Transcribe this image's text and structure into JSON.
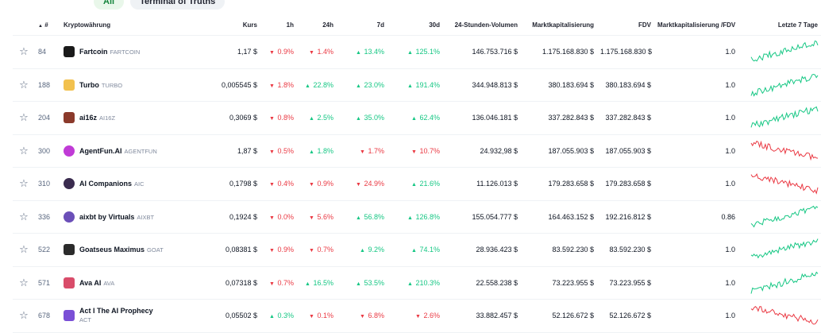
{
  "filters": [
    {
      "label": "All",
      "active": true
    },
    {
      "label": "Terminal of Truths",
      "active": false
    }
  ],
  "columns": {
    "rank": "#",
    "name": "Kryptowährung",
    "price": "Kurs",
    "h1": "1h",
    "h24": "24h",
    "d7": "7d",
    "d30": "30d",
    "volume": "24-Stunden-Volumen",
    "mcap": "Marktkapitalisierung",
    "fdv": "FDV",
    "ratio": "Marktkapitalisierung /FDV",
    "chart": "Letzte 7 Tage"
  },
  "colors": {
    "up": "#16c784",
    "down": "#ea3943"
  },
  "rows": [
    {
      "rank": "84",
      "name": "Fartcoin",
      "symbol": "FARTCOIN",
      "price": "1,17 $",
      "h1": "0.9%",
      "h1_dir": "down",
      "h24": "1.4%",
      "h24_dir": "down",
      "d7": "13.4%",
      "d7_dir": "up",
      "d30": "125.1%",
      "d30_dir": "up",
      "volume": "146.753.716 $",
      "mcap": "1.175.168.830 $",
      "fdv": "1.175.168.830 $",
      "ratio": "1.0",
      "trend": "up",
      "logo_color": "#1a1a1a",
      "logo_shape": "square"
    },
    {
      "rank": "188",
      "name": "Turbo",
      "symbol": "TURBO",
      "price": "0,005545 $",
      "h1": "1.8%",
      "h1_dir": "down",
      "h24": "22.8%",
      "h24_dir": "up",
      "d7": "23.0%",
      "d7_dir": "up",
      "d30": "191.4%",
      "d30_dir": "up",
      "volume": "344.948.813 $",
      "mcap": "380.183.694 $",
      "fdv": "380.183.694 $",
      "ratio": "1.0",
      "trend": "up",
      "logo_color": "#f2c14e",
      "logo_shape": "square"
    },
    {
      "rank": "204",
      "name": "ai16z",
      "symbol": "AI16Z",
      "price": "0,3069 $",
      "h1": "0.8%",
      "h1_dir": "down",
      "h24": "2.5%",
      "h24_dir": "up",
      "d7": "35.0%",
      "d7_dir": "up",
      "d30": "62.4%",
      "d30_dir": "up",
      "volume": "136.046.181 $",
      "mcap": "337.282.843 $",
      "fdv": "337.282.843 $",
      "ratio": "1.0",
      "trend": "up",
      "logo_color": "#8b3a2b",
      "logo_shape": "square"
    },
    {
      "rank": "300",
      "name": "AgentFun.AI",
      "symbol": "AGENTFUN",
      "price": "1,87 $",
      "h1": "0.5%",
      "h1_dir": "down",
      "h24": "1.8%",
      "h24_dir": "up",
      "d7": "1.7%",
      "d7_dir": "down",
      "d30": "10.7%",
      "d30_dir": "down",
      "volume": "24.932,98 $",
      "mcap": "187.055.903 $",
      "fdv": "187.055.903 $",
      "ratio": "1.0",
      "trend": "down",
      "logo_color": "#c03bd6",
      "logo_shape": "circle"
    },
    {
      "rank": "310",
      "name": "AI Companions",
      "symbol": "AIC",
      "price": "0,1798 $",
      "h1": "0.4%",
      "h1_dir": "down",
      "h24": "0.9%",
      "h24_dir": "down",
      "d7": "24.9%",
      "d7_dir": "down",
      "d30": "21.6%",
      "d30_dir": "up",
      "volume": "11.126.013 $",
      "mcap": "179.283.658 $",
      "fdv": "179.283.658 $",
      "ratio": "1.0",
      "trend": "down",
      "logo_color": "#3a2b4f",
      "logo_shape": "circle"
    },
    {
      "rank": "336",
      "name": "aixbt by Virtuals",
      "symbol": "AIXBT",
      "price": "0,1924 $",
      "h1": "0.0%",
      "h1_dir": "down",
      "h24": "5.6%",
      "h24_dir": "down",
      "d7": "56.8%",
      "d7_dir": "up",
      "d30": "126.8%",
      "d30_dir": "up",
      "volume": "155.054.777 $",
      "mcap": "164.463.152 $",
      "fdv": "192.216.812 $",
      "ratio": "0.86",
      "trend": "up",
      "logo_color": "#6b4fb8",
      "logo_shape": "circle"
    },
    {
      "rank": "522",
      "name": "Goatseus Maximus",
      "symbol": "GOAT",
      "price": "0,08381 $",
      "h1": "0.9%",
      "h1_dir": "down",
      "h24": "0.7%",
      "h24_dir": "down",
      "d7": "9.2%",
      "d7_dir": "up",
      "d30": "74.1%",
      "d30_dir": "up",
      "volume": "28.936.423 $",
      "mcap": "83.592.230 $",
      "fdv": "83.592.230 $",
      "ratio": "1.0",
      "trend": "up",
      "logo_color": "#2b2b2b",
      "logo_shape": "square"
    },
    {
      "rank": "571",
      "name": "Ava AI",
      "symbol": "AVA",
      "price": "0,07318 $",
      "h1": "0.7%",
      "h1_dir": "down",
      "h24": "16.5%",
      "h24_dir": "up",
      "d7": "53.5%",
      "d7_dir": "up",
      "d30": "210.3%",
      "d30_dir": "up",
      "volume": "22.558.238 $",
      "mcap": "73.223.955 $",
      "fdv": "73.223.955 $",
      "ratio": "1.0",
      "trend": "up",
      "logo_color": "#d94c6a",
      "logo_shape": "square"
    },
    {
      "rank": "678",
      "name": "Act I The AI Prophecy",
      "symbol": "ACT",
      "price": "0,05502 $",
      "h1": "0.3%",
      "h1_dir": "up",
      "h24": "0.1%",
      "h24_dir": "down",
      "d7": "6.8%",
      "d7_dir": "down",
      "d30": "2.6%",
      "d30_dir": "down",
      "volume": "33.882.457 $",
      "mcap": "52.126.672 $",
      "fdv": "52.126.672 $",
      "ratio": "1.0",
      "trend": "down",
      "logo_color": "#7a4fd6",
      "logo_shape": "square"
    }
  ]
}
